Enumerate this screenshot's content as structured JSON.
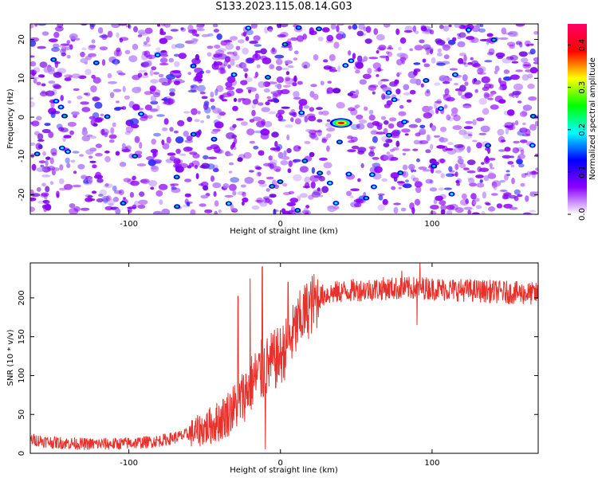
{
  "figure": {
    "title": "S133.2023.115.08.14.G03"
  },
  "chart_data": [
    {
      "type": "heatmap",
      "xlabel": "Height of straight line (km)",
      "ylabel": "Frequency (Hz)",
      "xlim": [
        -165,
        170
      ],
      "ylim": [
        -25,
        24
      ],
      "xticks": [
        -100,
        0,
        100
      ],
      "yticks": [
        -20,
        -10,
        0,
        10,
        20
      ],
      "colorbar": {
        "label": "Normalized spectral amplitude",
        "range": [
          0,
          0.45
        ],
        "ticks": [
          0.0,
          0.1,
          0.2,
          0.3,
          0.4
        ],
        "colors": [
          "#ffffff",
          "#8b00ff",
          "#0000ff",
          "#00ffff",
          "#00ff00",
          "#ffff00",
          "#ff0000",
          "#ff0066"
        ]
      },
      "peak": {
        "x": 40,
        "y": -1.5,
        "value": 0.45
      },
      "background_level": 0.05,
      "grid": false
    },
    {
      "type": "line",
      "xlabel": "Height of straight line (km)",
      "ylabel": "SNR (10 * v/v)",
      "xlim": [
        -165,
        170
      ],
      "ylim": [
        0,
        245
      ],
      "xticks": [
        -100,
        0,
        100
      ],
      "yticks": [
        0,
        50,
        100,
        150,
        200
      ],
      "line_color": "#e8312b",
      "grid": false,
      "series": [
        {
          "name": "",
          "x": [
            -165,
            -150,
            -130,
            -110,
            -90,
            -80,
            -70,
            -60,
            -50,
            -40,
            -30,
            -25,
            -20,
            -15,
            -10,
            -5,
            0,
            5,
            10,
            15,
            20,
            25,
            30,
            40,
            50,
            60,
            70,
            80,
            90,
            100,
            110,
            120,
            130,
            140,
            150,
            160,
            170
          ],
          "values": [
            18,
            14,
            12,
            12,
            14,
            16,
            20,
            25,
            32,
            42,
            60,
            72,
            88,
            100,
            110,
            118,
            125,
            140,
            160,
            178,
            190,
            200,
            205,
            208,
            210,
            211,
            212,
            212,
            213,
            212,
            211,
            210,
            209,
            208,
            207,
            206,
            205
          ]
        }
      ],
      "spikes": [
        {
          "x": -28,
          "y": 202
        },
        {
          "x": -20,
          "y": 225
        },
        {
          "x": -12,
          "y": 240
        },
        {
          "x": -10,
          "y": 5
        },
        {
          "x": 5,
          "y": 220
        },
        {
          "x": 80,
          "y": 235
        },
        {
          "x": 92,
          "y": 245
        },
        {
          "x": 90,
          "y": 165
        }
      ]
    }
  ]
}
